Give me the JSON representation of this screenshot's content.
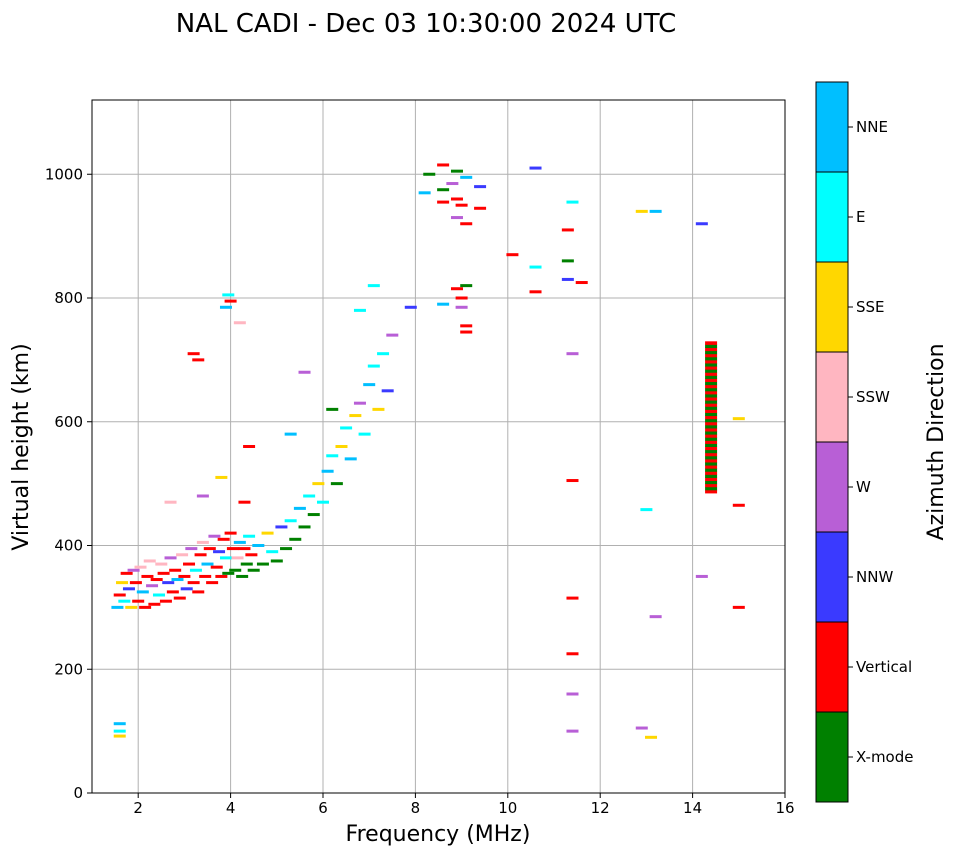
{
  "chart_data": {
    "type": "scatter",
    "title": "NAL CADI - Dec 03 10:30:00 2024 UTC",
    "xlabel": "Frequency (MHz)",
    "ylabel": "Virtual height (km)",
    "xlim": [
      1,
      16
    ],
    "ylim": [
      0,
      1120
    ],
    "xticks": [
      2,
      4,
      6,
      8,
      10,
      12,
      14,
      16
    ],
    "yticks": [
      0,
      200,
      400,
      600,
      800,
      1000
    ],
    "grid": true,
    "colorbar": {
      "label": "Azimuth Direction",
      "categories": [
        {
          "name": "X-mode",
          "color": "#008000"
        },
        {
          "name": "Vertical",
          "color": "#ff0000"
        },
        {
          "name": "NNW",
          "color": "#3a3aff"
        },
        {
          "name": "W",
          "color": "#b85fd6"
        },
        {
          "name": "SSW",
          "color": "#ffb6c1"
        },
        {
          "name": "SSE",
          "color": "#ffd700"
        },
        {
          "name": "E",
          "color": "#00ffff"
        },
        {
          "name": "NNE",
          "color": "#00bfff"
        }
      ]
    },
    "points": [
      {
        "f": 1.55,
        "h": 300,
        "c": "NNE"
      },
      {
        "f": 1.6,
        "h": 320,
        "c": "Vertical"
      },
      {
        "f": 1.65,
        "h": 340,
        "c": "SSE"
      },
      {
        "f": 1.7,
        "h": 310,
        "c": "E"
      },
      {
        "f": 1.75,
        "h": 355,
        "c": "Vertical"
      },
      {
        "f": 1.8,
        "h": 330,
        "c": "NNW"
      },
      {
        "f": 1.85,
        "h": 300,
        "c": "SSE"
      },
      {
        "f": 1.9,
        "h": 360,
        "c": "W"
      },
      {
        "f": 1.95,
        "h": 340,
        "c": "Vertical"
      },
      {
        "f": 2.0,
        "h": 310,
        "c": "Vertical"
      },
      {
        "f": 2.05,
        "h": 365,
        "c": "SSW"
      },
      {
        "f": 2.1,
        "h": 325,
        "c": "NNE"
      },
      {
        "f": 2.15,
        "h": 300,
        "c": "Vertical"
      },
      {
        "f": 2.2,
        "h": 350,
        "c": "Vertical"
      },
      {
        "f": 2.25,
        "h": 375,
        "c": "SSW"
      },
      {
        "f": 2.3,
        "h": 335,
        "c": "W"
      },
      {
        "f": 2.35,
        "h": 305,
        "c": "Vertical"
      },
      {
        "f": 2.4,
        "h": 345,
        "c": "Vertical"
      },
      {
        "f": 2.45,
        "h": 320,
        "c": "E"
      },
      {
        "f": 2.5,
        "h": 370,
        "c": "SSW"
      },
      {
        "f": 2.55,
        "h": 355,
        "c": "Vertical"
      },
      {
        "f": 2.6,
        "h": 310,
        "c": "Vertical"
      },
      {
        "f": 2.65,
        "h": 340,
        "c": "NNW"
      },
      {
        "f": 2.7,
        "h": 380,
        "c": "W"
      },
      {
        "f": 2.75,
        "h": 325,
        "c": "Vertical"
      },
      {
        "f": 2.8,
        "h": 360,
        "c": "Vertical"
      },
      {
        "f": 2.85,
        "h": 345,
        "c": "NNE"
      },
      {
        "f": 2.9,
        "h": 315,
        "c": "Vertical"
      },
      {
        "f": 2.95,
        "h": 385,
        "c": "SSW"
      },
      {
        "f": 3.0,
        "h": 350,
        "c": "Vertical"
      },
      {
        "f": 3.05,
        "h": 330,
        "c": "NNW"
      },
      {
        "f": 3.1,
        "h": 370,
        "c": "Vertical"
      },
      {
        "f": 3.15,
        "h": 395,
        "c": "W"
      },
      {
        "f": 3.2,
        "h": 340,
        "c": "Vertical"
      },
      {
        "f": 3.25,
        "h": 360,
        "c": "E"
      },
      {
        "f": 3.3,
        "h": 325,
        "c": "Vertical"
      },
      {
        "f": 3.35,
        "h": 385,
        "c": "Vertical"
      },
      {
        "f": 3.4,
        "h": 405,
        "c": "SSW"
      },
      {
        "f": 3.45,
        "h": 350,
        "c": "Vertical"
      },
      {
        "f": 3.5,
        "h": 370,
        "c": "NNE"
      },
      {
        "f": 3.55,
        "h": 395,
        "c": "Vertical"
      },
      {
        "f": 3.6,
        "h": 340,
        "c": "Vertical"
      },
      {
        "f": 3.65,
        "h": 415,
        "c": "W"
      },
      {
        "f": 3.7,
        "h": 365,
        "c": "Vertical"
      },
      {
        "f": 3.75,
        "h": 390,
        "c": "NNW"
      },
      {
        "f": 3.8,
        "h": 350,
        "c": "Vertical"
      },
      {
        "f": 3.85,
        "h": 410,
        "c": "Vertical"
      },
      {
        "f": 3.9,
        "h": 380,
        "c": "E"
      },
      {
        "f": 3.95,
        "h": 355,
        "c": "X-mode"
      },
      {
        "f": 4.0,
        "h": 420,
        "c": "Vertical"
      },
      {
        "f": 4.05,
        "h": 395,
        "c": "Vertical"
      },
      {
        "f": 4.1,
        "h": 360,
        "c": "X-mode"
      },
      {
        "f": 4.15,
        "h": 380,
        "c": "SSW"
      },
      {
        "f": 4.2,
        "h": 405,
        "c": "NNE"
      },
      {
        "f": 4.25,
        "h": 350,
        "c": "X-mode"
      },
      {
        "f": 4.3,
        "h": 395,
        "c": "Vertical"
      },
      {
        "f": 4.35,
        "h": 370,
        "c": "X-mode"
      },
      {
        "f": 4.4,
        "h": 415,
        "c": "E"
      },
      {
        "f": 4.45,
        "h": 385,
        "c": "Vertical"
      },
      {
        "f": 4.5,
        "h": 360,
        "c": "X-mode"
      },
      {
        "f": 4.6,
        "h": 400,
        "c": "NNE"
      },
      {
        "f": 4.7,
        "h": 370,
        "c": "X-mode"
      },
      {
        "f": 4.8,
        "h": 420,
        "c": "SSE"
      },
      {
        "f": 4.9,
        "h": 390,
        "c": "E"
      },
      {
        "f": 5.0,
        "h": 375,
        "c": "X-mode"
      },
      {
        "f": 5.1,
        "h": 430,
        "c": "NNW"
      },
      {
        "f": 5.2,
        "h": 395,
        "c": "X-mode"
      },
      {
        "f": 5.3,
        "h": 440,
        "c": "E"
      },
      {
        "f": 5.4,
        "h": 410,
        "c": "X-mode"
      },
      {
        "f": 5.5,
        "h": 460,
        "c": "NNE"
      },
      {
        "f": 5.6,
        "h": 430,
        "c": "X-mode"
      },
      {
        "f": 5.7,
        "h": 480,
        "c": "E"
      },
      {
        "f": 5.8,
        "h": 450,
        "c": "X-mode"
      },
      {
        "f": 5.9,
        "h": 500,
        "c": "SSE"
      },
      {
        "f": 6.0,
        "h": 470,
        "c": "E"
      },
      {
        "f": 6.1,
        "h": 520,
        "c": "NNE"
      },
      {
        "f": 6.2,
        "h": 545,
        "c": "E"
      },
      {
        "f": 6.3,
        "h": 500,
        "c": "X-mode"
      },
      {
        "f": 6.4,
        "h": 560,
        "c": "SSE"
      },
      {
        "f": 6.5,
        "h": 590,
        "c": "E"
      },
      {
        "f": 6.6,
        "h": 540,
        "c": "NNE"
      },
      {
        "f": 6.7,
        "h": 610,
        "c": "SSE"
      },
      {
        "f": 6.8,
        "h": 630,
        "c": "W"
      },
      {
        "f": 6.9,
        "h": 580,
        "c": "E"
      },
      {
        "f": 7.0,
        "h": 660,
        "c": "NNE"
      },
      {
        "f": 7.1,
        "h": 690,
        "c": "E"
      },
      {
        "f": 7.2,
        "h": 620,
        "c": "SSE"
      },
      {
        "f": 7.3,
        "h": 710,
        "c": "E"
      },
      {
        "f": 7.4,
        "h": 650,
        "c": "NNW"
      },
      {
        "f": 7.5,
        "h": 740,
        "c": "W"
      },
      {
        "f": 6.8,
        "h": 780,
        "c": "E"
      },
      {
        "f": 7.1,
        "h": 820,
        "c": "E"
      },
      {
        "f": 6.2,
        "h": 620,
        "c": "X-mode"
      },
      {
        "f": 5.3,
        "h": 580,
        "c": "NNE"
      },
      {
        "f": 4.4,
        "h": 560,
        "c": "Vertical"
      },
      {
        "f": 4.3,
        "h": 470,
        "c": "Vertical"
      },
      {
        "f": 3.8,
        "h": 510,
        "c": "SSE"
      },
      {
        "f": 3.4,
        "h": 480,
        "c": "W"
      },
      {
        "f": 2.7,
        "h": 470,
        "c": "SSW"
      },
      {
        "f": 3.2,
        "h": 710,
        "c": "Vertical"
      },
      {
        "f": 3.3,
        "h": 700,
        "c": "Vertical"
      },
      {
        "f": 3.95,
        "h": 805,
        "c": "E"
      },
      {
        "f": 4.0,
        "h": 795,
        "c": "Vertical"
      },
      {
        "f": 3.9,
        "h": 785,
        "c": "NNE"
      },
      {
        "f": 4.2,
        "h": 760,
        "c": "SSW"
      },
      {
        "f": 5.6,
        "h": 680,
        "c": "W"
      },
      {
        "f": 7.9,
        "h": 785,
        "c": "NNW"
      },
      {
        "f": 8.6,
        "h": 790,
        "c": "NNE"
      },
      {
        "f": 8.9,
        "h": 815,
        "c": "Vertical"
      },
      {
        "f": 9.0,
        "h": 800,
        "c": "Vertical"
      },
      {
        "f": 9.1,
        "h": 820,
        "c": "X-mode"
      },
      {
        "f": 9.0,
        "h": 785,
        "c": "W"
      },
      {
        "f": 9.1,
        "h": 755,
        "c": "Vertical"
      },
      {
        "f": 9.1,
        "h": 745,
        "c": "Vertical"
      },
      {
        "f": 8.6,
        "h": 1015,
        "c": "Vertical"
      },
      {
        "f": 8.9,
        "h": 1005,
        "c": "X-mode"
      },
      {
        "f": 9.1,
        "h": 995,
        "c": "NNE"
      },
      {
        "f": 8.3,
        "h": 1000,
        "c": "X-mode"
      },
      {
        "f": 8.8,
        "h": 985,
        "c": "W"
      },
      {
        "f": 9.4,
        "h": 980,
        "c": "NNW"
      },
      {
        "f": 8.2,
        "h": 970,
        "c": "NNE"
      },
      {
        "f": 8.6,
        "h": 975,
        "c": "X-mode"
      },
      {
        "f": 8.9,
        "h": 960,
        "c": "Vertical"
      },
      {
        "f": 9.0,
        "h": 950,
        "c": "Vertical"
      },
      {
        "f": 8.6,
        "h": 955,
        "c": "Vertical"
      },
      {
        "f": 9.4,
        "h": 945,
        "c": "Vertical"
      },
      {
        "f": 8.9,
        "h": 930,
        "c": "W"
      },
      {
        "f": 9.1,
        "h": 920,
        "c": "Vertical"
      },
      {
        "f": 10.1,
        "h": 870,
        "c": "Vertical"
      },
      {
        "f": 10.6,
        "h": 1010,
        "c": "NNW"
      },
      {
        "f": 10.6,
        "h": 850,
        "c": "E"
      },
      {
        "f": 10.6,
        "h": 810,
        "c": "Vertical"
      },
      {
        "f": 11.4,
        "h": 955,
        "c": "E"
      },
      {
        "f": 11.3,
        "h": 910,
        "c": "Vertical"
      },
      {
        "f": 11.3,
        "h": 860,
        "c": "X-mode"
      },
      {
        "f": 11.3,
        "h": 830,
        "c": "NNW"
      },
      {
        "f": 11.6,
        "h": 825,
        "c": "Vertical"
      },
      {
        "f": 11.4,
        "h": 710,
        "c": "W"
      },
      {
        "f": 11.4,
        "h": 505,
        "c": "Vertical"
      },
      {
        "f": 11.4,
        "h": 315,
        "c": "Vertical"
      },
      {
        "f": 11.4,
        "h": 225,
        "c": "Vertical"
      },
      {
        "f": 11.4,
        "h": 160,
        "c": "W"
      },
      {
        "f": 11.4,
        "h": 100,
        "c": "W"
      },
      {
        "f": 12.9,
        "h": 940,
        "c": "SSE"
      },
      {
        "f": 13.2,
        "h": 940,
        "c": "NNE"
      },
      {
        "f": 14.2,
        "h": 920,
        "c": "NNW"
      },
      {
        "f": 13.0,
        "h": 458,
        "c": "E"
      },
      {
        "f": 14.2,
        "h": 350,
        "c": "W"
      },
      {
        "f": 13.2,
        "h": 285,
        "c": "W"
      },
      {
        "f": 12.9,
        "h": 105,
        "c": "W"
      },
      {
        "f": 13.1,
        "h": 90,
        "c": "SSE"
      },
      {
        "f": 15.0,
        "h": 605,
        "c": "SSE"
      },
      {
        "f": 15.0,
        "h": 465,
        "c": "Vertical"
      },
      {
        "f": 15.0,
        "h": 300,
        "c": "Vertical"
      },
      {
        "f": 1.6,
        "h": 112,
        "c": "NNE"
      },
      {
        "f": 1.6,
        "h": 100,
        "c": "E"
      },
      {
        "f": 1.6,
        "h": 92,
        "c": "SSE"
      }
    ],
    "column": {
      "f": 14.4,
      "h_range": [
        485,
        730
      ],
      "colors": [
        "Vertical",
        "X-mode"
      ]
    }
  }
}
